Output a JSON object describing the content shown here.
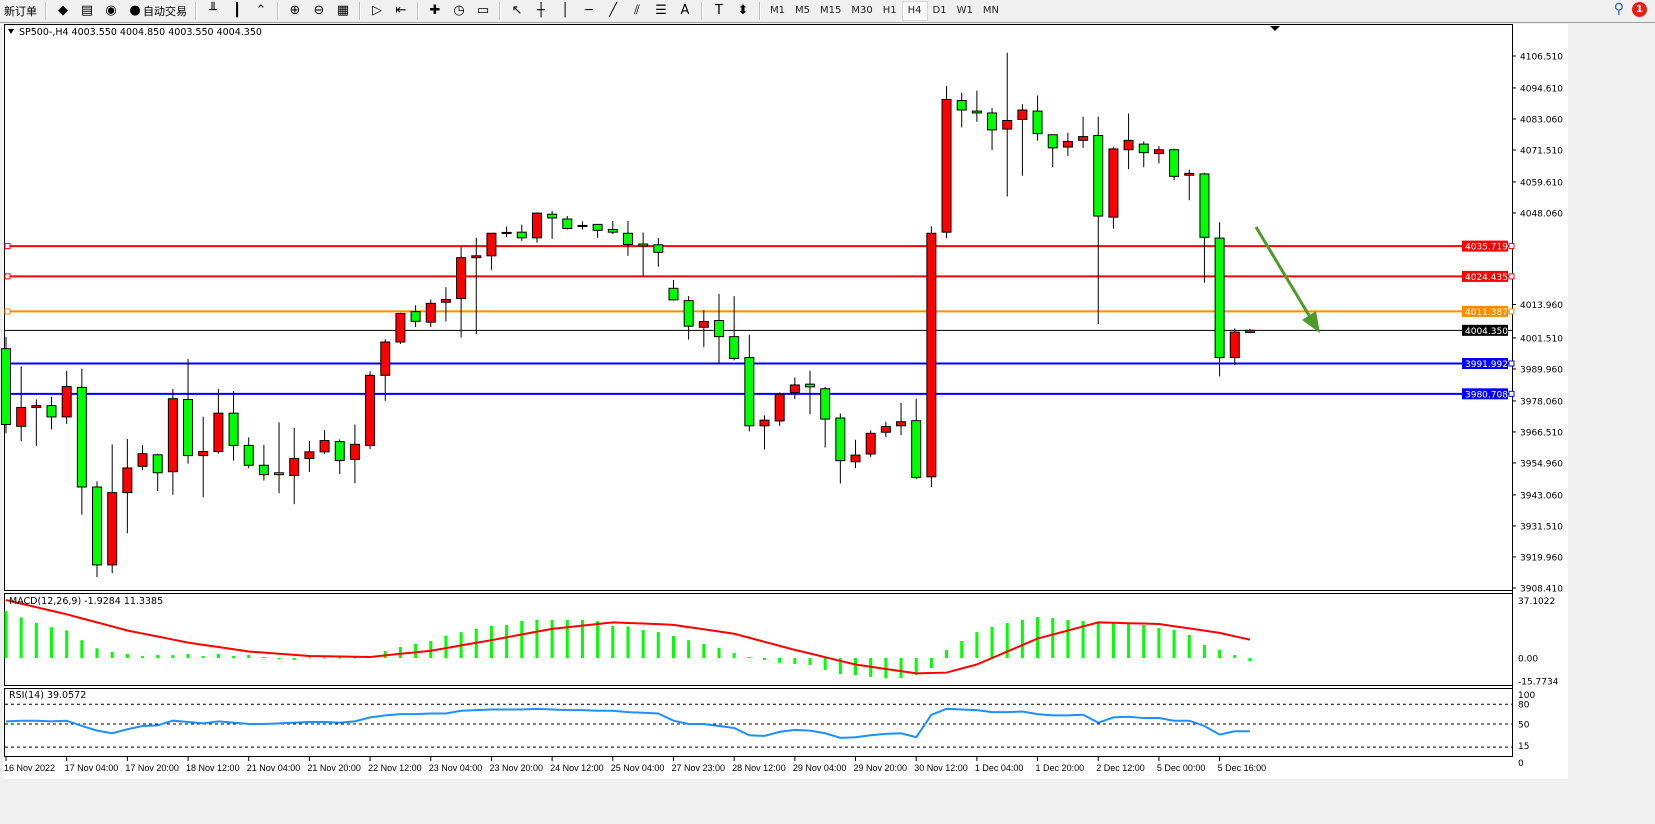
{
  "toolbar": {
    "items": [
      {
        "name": "new-order-button",
        "label": "新订单",
        "icon": ""
      },
      {
        "name": "market-watch-button",
        "label": "",
        "icon": "◆"
      },
      {
        "name": "data-window-button",
        "label": "",
        "icon": "▤"
      },
      {
        "name": "signals-button",
        "label": "",
        "icon": "◉"
      },
      {
        "name": "auto-trading-button",
        "label": "自动交易",
        "icon": "●"
      },
      {
        "name": "bar-chart-button",
        "label": "",
        "icon": "╨"
      },
      {
        "name": "candlestick-chart-button",
        "label": "",
        "icon": "┃"
      },
      {
        "name": "line-chart-button",
        "label": "",
        "icon": "⌃"
      },
      {
        "name": "zoom-in-button",
        "label": "",
        "icon": "⊕"
      },
      {
        "name": "zoom-out-button",
        "label": "",
        "icon": "⊖"
      },
      {
        "name": "tile-windows-button",
        "label": "",
        "icon": "▦"
      },
      {
        "name": "auto-scroll-button",
        "label": "",
        "icon": "▷"
      },
      {
        "name": "chart-shift-button",
        "label": "",
        "icon": "⇤"
      },
      {
        "name": "indicators-button",
        "label": "",
        "icon": "✚"
      },
      {
        "name": "periods-button",
        "label": "",
        "icon": "◷"
      },
      {
        "name": "templates-button",
        "label": "",
        "icon": "▭"
      },
      {
        "name": "cursor-button",
        "label": "",
        "icon": "↖"
      },
      {
        "name": "crosshair-button",
        "label": "",
        "icon": "┼"
      },
      {
        "name": "vertical-line-button",
        "label": "",
        "icon": "│"
      },
      {
        "name": "horizontal-line-button",
        "label": "",
        "icon": "─"
      },
      {
        "name": "trendline-button",
        "label": "",
        "icon": "╱"
      },
      {
        "name": "equidistant-channel-button",
        "label": "",
        "icon": "⫽"
      },
      {
        "name": "fibonacci-button",
        "label": "",
        "icon": "☰"
      },
      {
        "name": "text-button",
        "label": "",
        "icon": "A"
      },
      {
        "name": "text-label-button",
        "label": "",
        "icon": "T"
      },
      {
        "name": "arrows-button",
        "label": "",
        "icon": "⬍"
      }
    ],
    "timeframes": [
      "M1",
      "M5",
      "M15",
      "M30",
      "H1",
      "H4",
      "D1",
      "W1",
      "MN"
    ],
    "active_timeframe": "H4",
    "notification_count": "1"
  },
  "chart": {
    "header": "SP500-,H4  4003.550 4004.850 4003.550 4004.350",
    "bull_color": "#ff0000",
    "bear_color": "#00ff00",
    "price_labels": [
      "4106.510",
      "4094.610",
      "4083.060",
      "4071.510",
      "4059.610",
      "4048.060",
      "4013.960",
      "4001.510",
      "3989.960",
      "3978.060",
      "3966.510",
      "3954.960",
      "3943.060",
      "3931.510",
      "3919.960",
      "3908.410"
    ],
    "hlines": [
      {
        "value": "4035.719",
        "color": "#ff0000"
      },
      {
        "value": "4024.435",
        "color": "#ff0000"
      },
      {
        "value": "4011.387",
        "color": "#ff8c00"
      },
      {
        "value": "3991.992",
        "color": "#0000ff"
      },
      {
        "value": "3980.708",
        "color": "#0000ff"
      }
    ],
    "bid": {
      "value": "4004.350",
      "color": "#000000"
    },
    "arrow_color": "#4f9a2c",
    "time_labels": [
      "16 Nov 2022",
      "17 Nov 04:00",
      "17 Nov 20:00",
      "18 Nov 12:00",
      "21 Nov 04:00",
      "21 Nov 20:00",
      "22 Nov 12:00",
      "23 Nov 04:00",
      "23 Nov 20:00",
      "24 Nov 12:00",
      "25 Nov 04:00",
      "27 Nov 23:00",
      "28 Nov 12:00",
      "29 Nov 04:00",
      "29 Nov 20:00",
      "30 Nov 12:00",
      "1 Dec 04:00",
      "1 Dec 20:00",
      "2 Dec 12:00",
      "5 Dec 00:00",
      "5 Dec 16:00"
    ],
    "candles_ohlc": [
      [
        3997.5,
        4001.9,
        3966.0,
        3969.3
      ],
      [
        3968.6,
        3990.9,
        3963.1,
        3975.6
      ],
      [
        3975.6,
        3978.6,
        3961.3,
        3976.3
      ],
      [
        3976.3,
        3979.6,
        3967.4,
        3972.1
      ],
      [
        3972.1,
        3989.2,
        3969.5,
        3983.4
      ],
      [
        3983.1,
        3990.1,
        3935.7,
        3946.0
      ],
      [
        3946.0,
        3948.1,
        3912.5,
        3917.0
      ],
      [
        3917.0,
        3961.9,
        3914.0,
        3943.9
      ],
      [
        3943.9,
        3963.9,
        3928.8,
        3953.1
      ],
      [
        3953.7,
        3961.7,
        3952.3,
        3958.4
      ],
      [
        3958.0,
        3958.4,
        3944.5,
        3951.3
      ],
      [
        3951.7,
        3982.5,
        3943.1,
        3978.9
      ],
      [
        3978.6,
        3993.7,
        3954.7,
        3957.7
      ],
      [
        3957.7,
        3972.2,
        3942.2,
        3959.2
      ],
      [
        3959.2,
        3982.5,
        3958.4,
        3973.5
      ],
      [
        3973.5,
        3981.7,
        3955.8,
        3961.5
      ],
      [
        3961.5,
        3964.5,
        3953.0,
        3954.1
      ],
      [
        3954.1,
        3961.7,
        3948.4,
        3950.6
      ],
      [
        3951.3,
        3970.1,
        3943.7,
        3950.6
      ],
      [
        3950.3,
        3968.0,
        3939.6,
        3956.6
      ],
      [
        3956.6,
        3963.1,
        3951.6,
        3959.1
      ],
      [
        3959.1,
        3967.2,
        3958.3,
        3963.3
      ],
      [
        3962.9,
        3963.7,
        3950.8,
        3955.9
      ],
      [
        3956.3,
        3969.3,
        3947.4,
        3961.9
      ],
      [
        3961.5,
        3989.1,
        3960.1,
        3987.6
      ],
      [
        3987.6,
        4001.0,
        3978.1,
        4000.0
      ],
      [
        4000.0,
        4010.9,
        3999.3,
        4010.6
      ],
      [
        4011.3,
        4013.7,
        4005.6,
        4007.7
      ],
      [
        4007.4,
        4015.8,
        4005.6,
        4014.4
      ],
      [
        4014.8,
        4020.4,
        4007.7,
        4015.8
      ],
      [
        4016.2,
        4035.6,
        4001.7,
        4031.4
      ],
      [
        4031.4,
        4038.8,
        4003.0,
        4032.1
      ],
      [
        4032.1,
        4040.5,
        4026.8,
        4040.5
      ],
      [
        4040.8,
        4043.0,
        4039.1,
        4040.8
      ],
      [
        4040.9,
        4043.7,
        4037.7,
        4038.8
      ],
      [
        4038.8,
        4048.3,
        4037.0,
        4048.0
      ],
      [
        4047.6,
        4048.8,
        4038.4,
        4046.2
      ],
      [
        4045.8,
        4046.9,
        4041.9,
        4042.3
      ],
      [
        4043.4,
        4044.9,
        4041.9,
        4043.4
      ],
      [
        4043.8,
        4043.8,
        4038.8,
        4041.6
      ],
      [
        4041.9,
        4045.1,
        4040.2,
        4040.9
      ],
      [
        4040.5,
        4045.1,
        4032.1,
        4036.3
      ],
      [
        4036.5,
        4040.8,
        4024.6,
        4035.8
      ],
      [
        4036.2,
        4038.7,
        4028.0,
        4033.4
      ],
      [
        4020.0,
        4023.1,
        4015.3,
        4015.7
      ],
      [
        4015.4,
        4017.1,
        4000.9,
        4005.9
      ],
      [
        4005.5,
        4011.9,
        3998.1,
        4007.6
      ],
      [
        4008.0,
        4017.9,
        3992.1,
        4002.0
      ],
      [
        4002.0,
        4017.1,
        3993.2,
        3993.9
      ],
      [
        3994.2,
        4002.7,
        3966.7,
        3968.8
      ],
      [
        3968.8,
        3972.7,
        3960.0,
        3970.9
      ],
      [
        3970.6,
        3981.2,
        3968.8,
        3980.5
      ],
      [
        3981.2,
        3986.8,
        3978.7,
        3984.0
      ],
      [
        3984.3,
        3989.3,
        3973.1,
        3983.3
      ],
      [
        3982.6,
        3983.3,
        3960.7,
        3971.3
      ],
      [
        3971.7,
        3973.4,
        3947.3,
        3955.8
      ],
      [
        3955.4,
        3963.6,
        3953.0,
        3957.9
      ],
      [
        3958.3,
        3967.1,
        3957.2,
        3966.0
      ],
      [
        3966.4,
        3970.3,
        3964.6,
        3968.5
      ],
      [
        3968.8,
        3977.3,
        3965.3,
        3970.3
      ],
      [
        3970.7,
        3978.9,
        3949.0,
        3949.6
      ],
      [
        3949.8,
        4043.1,
        3946.0,
        4040.5
      ],
      [
        4040.9,
        4095.3,
        4038.7,
        4090.3
      ],
      [
        4089.9,
        4092.8,
        4079.9,
        4086.4
      ],
      [
        4086.0,
        4093.6,
        4082.0,
        4085.3
      ],
      [
        4085.3,
        4087.1,
        4071.5,
        4079.0
      ],
      [
        4079.3,
        4107.7,
        4054.2,
        4082.5
      ],
      [
        4082.9,
        4088.6,
        4061.9,
        4086.4
      ],
      [
        4086.0,
        4091.8,
        4075.0,
        4077.6
      ],
      [
        4077.2,
        4077.2,
        4065.1,
        4072.3
      ],
      [
        4072.6,
        4077.9,
        4069.3,
        4074.7
      ],
      [
        4075.1,
        4083.9,
        4072.3,
        4076.5
      ],
      [
        4076.9,
        4083.9,
        4006.7,
        4046.9
      ],
      [
        4046.5,
        4072.6,
        4042.2,
        4071.9
      ],
      [
        4071.6,
        4085.1,
        4064.4,
        4075.1
      ],
      [
        4073.7,
        4074.7,
        4065.1,
        4070.5
      ],
      [
        4070.2,
        4073.0,
        4066.5,
        4071.6
      ],
      [
        4071.6,
        4072.0,
        4060.3,
        4061.7
      ],
      [
        4062.1,
        4064.2,
        4052.8,
        4062.8
      ],
      [
        4062.6,
        4063.0,
        4022.1,
        4039.0
      ],
      [
        4038.7,
        4044.6,
        3987.2,
        3994.2
      ],
      [
        3994.2,
        4005.1,
        3991.4,
        4003.7
      ],
      [
        4003.55,
        4004.85,
        4003.55,
        4004.35
      ]
    ]
  },
  "macd": {
    "label": "MACD(12,26,9) -1.9284 11.3385",
    "axis_labels": [
      "37.1022",
      "0.00",
      "-15.7734"
    ],
    "histogram_color": "#00ff00",
    "signal_color": "#ff0000",
    "histogram": [
      29,
      25,
      21.6,
      19,
      17,
      11,
      6,
      3.7,
      2.5,
      1.2,
      1.8,
      1.8,
      2.5,
      1.2,
      2.5,
      1.2,
      1.8,
      0.6,
      -0.6,
      -1.2,
      0.3,
      0.3,
      0.3,
      0.3,
      1.2,
      4.3,
      6.8,
      8.7,
      10.5,
      13.6,
      16,
      18,
      19.8,
      20.4,
      22.9,
      23.5,
      23.5,
      23.5,
      23.5,
      22.9,
      19.8,
      19.5,
      17.3,
      16,
      13.6,
      11,
      8.7,
      6.2,
      3,
      0.6,
      -1.2,
      -3,
      -3.7,
      -4.3,
      -7.4,
      -9.9,
      -10.5,
      -11.7,
      -12.4,
      -12.4,
      -10.5,
      -6.2,
      4.9,
      10.5,
      16,
      19.2,
      21.6,
      23.5,
      25.3,
      24.7,
      23.5,
      22.9,
      22.2,
      21.6,
      21,
      20.4,
      18.5,
      17.3,
      14.2,
      8,
      4.9,
      1.8,
      -1.9284
    ],
    "signal": [
      35.8,
      33.6,
      31.4,
      29.2,
      27,
      24.5,
      22,
      19.5,
      17,
      15.1,
      13.3,
      11.4,
      9.5,
      8.1,
      6.8,
      5.4,
      4,
      3.3,
      2.6,
      1.9,
      1.2,
      1.1,
      0.9,
      0.8,
      0.6,
      1.6,
      2.6,
      3.5,
      4.5,
      6.1,
      7.8,
      9.4,
      11,
      12.8,
      14.5,
      16.3,
      18,
      19,
      20,
      21,
      22,
      21.6,
      21.3,
      20.9,
      20.5,
      19.1,
      17.8,
      16.4,
      15,
      12.5,
      10,
      7.5,
      5,
      2.8,
      0.5,
      -1.8,
      -4,
      -5.4,
      -6.8,
      -8.1,
      -9.5,
      -9.3,
      -9,
      -6.5,
      -4,
      0,
      4,
      8,
      12,
      14.5,
      17,
      19.5,
      22,
      21.8,
      21.5,
      21.3,
      21,
      19.6,
      18.3,
      16.9,
      15.5,
      13.4,
      11.3385
    ]
  },
  "rsi": {
    "label": "RSI(14) 39.0572",
    "axis_labels": [
      "100",
      "80",
      "50",
      "15",
      "0"
    ],
    "line_color": "#1e90ff",
    "values": [
      54,
      55,
      55,
      54,
      55,
      47,
      40,
      36,
      42,
      47,
      48,
      55,
      53,
      51,
      54,
      52,
      50,
      50,
      51,
      52,
      53,
      53,
      52,
      54,
      60,
      63,
      65,
      65,
      66,
      66,
      70,
      71,
      72,
      72,
      72,
      73,
      72,
      71,
      71,
      70,
      70,
      68,
      67,
      66,
      55,
      50,
      50,
      47,
      44,
      33,
      32,
      38,
      41,
      40,
      36,
      29,
      30,
      33,
      35,
      36,
      30,
      64,
      73,
      72,
      71,
      68,
      68,
      69,
      65,
      63,
      63,
      64,
      52,
      60,
      61,
      59,
      59,
      55,
      55,
      47,
      34,
      39,
      39.0572
    ]
  }
}
